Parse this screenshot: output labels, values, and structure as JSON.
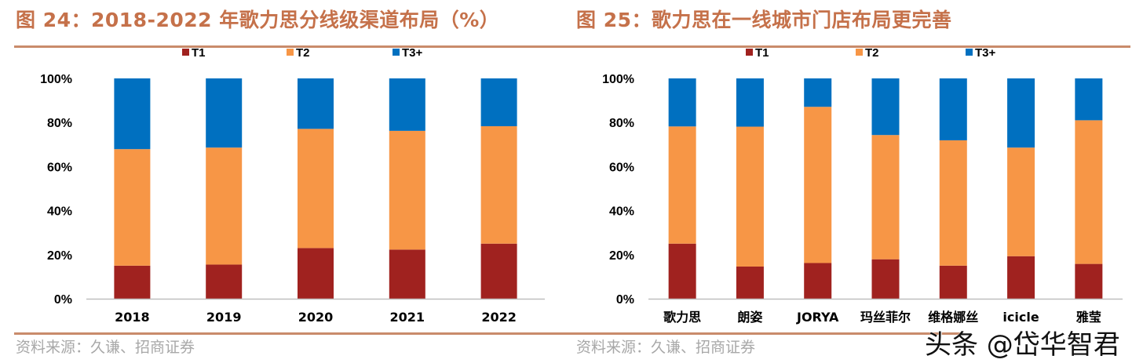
{
  "colors": {
    "T1": "#A0221F",
    "T2": "#F79646",
    "T3+": "#0070C0",
    "title": "#C5714A",
    "axis": "#BFBFBF"
  },
  "watermark": "头条 @岱华智君",
  "chart_data": [
    {
      "type": "bar",
      "stacked": true,
      "title": "图 24：2018-2022 年歌力思分线级渠道布局（%）",
      "source": "资料来源：久谦、招商证券",
      "categories": [
        "2018",
        "2019",
        "2020",
        "2021",
        "2022"
      ],
      "series": [
        {
          "name": "T1",
          "values": [
            15.0,
            15.5,
            23.0,
            22.3,
            25.0
          ]
        },
        {
          "name": "T2",
          "values": [
            52.9,
            53.1,
            54.1,
            53.9,
            53.3
          ]
        },
        {
          "name": "T3+",
          "values": [
            32.1,
            31.4,
            22.9,
            23.8,
            21.7
          ]
        }
      ],
      "yticks": [
        "0%",
        "20%",
        "40%",
        "60%",
        "80%",
        "100%"
      ],
      "ylim": [
        0,
        100
      ],
      "legend": "top",
      "grid": false
    },
    {
      "type": "bar",
      "stacked": true,
      "title": "图 25：歌力思在一线城市门店布局更完善",
      "source": "资料来源：久谦、招商证券",
      "categories": [
        "歌力思",
        "朗姿",
        "JORYA",
        "玛丝菲尔",
        "维格娜丝",
        "icicle",
        "雅莹"
      ],
      "series": [
        {
          "name": "T1",
          "values": [
            25.0,
            14.6,
            16.2,
            17.9,
            15.0,
            19.3,
            15.8
          ]
        },
        {
          "name": "T2",
          "values": [
            53.2,
            63.5,
            70.9,
            56.4,
            56.9,
            49.3,
            65.2
          ]
        },
        {
          "name": "T3+",
          "values": [
            21.8,
            21.9,
            12.9,
            25.7,
            28.1,
            31.4,
            19.0
          ]
        }
      ],
      "yticks": [
        "0%",
        "20%",
        "40%",
        "60%",
        "80%",
        "100%"
      ],
      "ylim": [
        0,
        100
      ],
      "legend": "top",
      "grid": false
    }
  ]
}
